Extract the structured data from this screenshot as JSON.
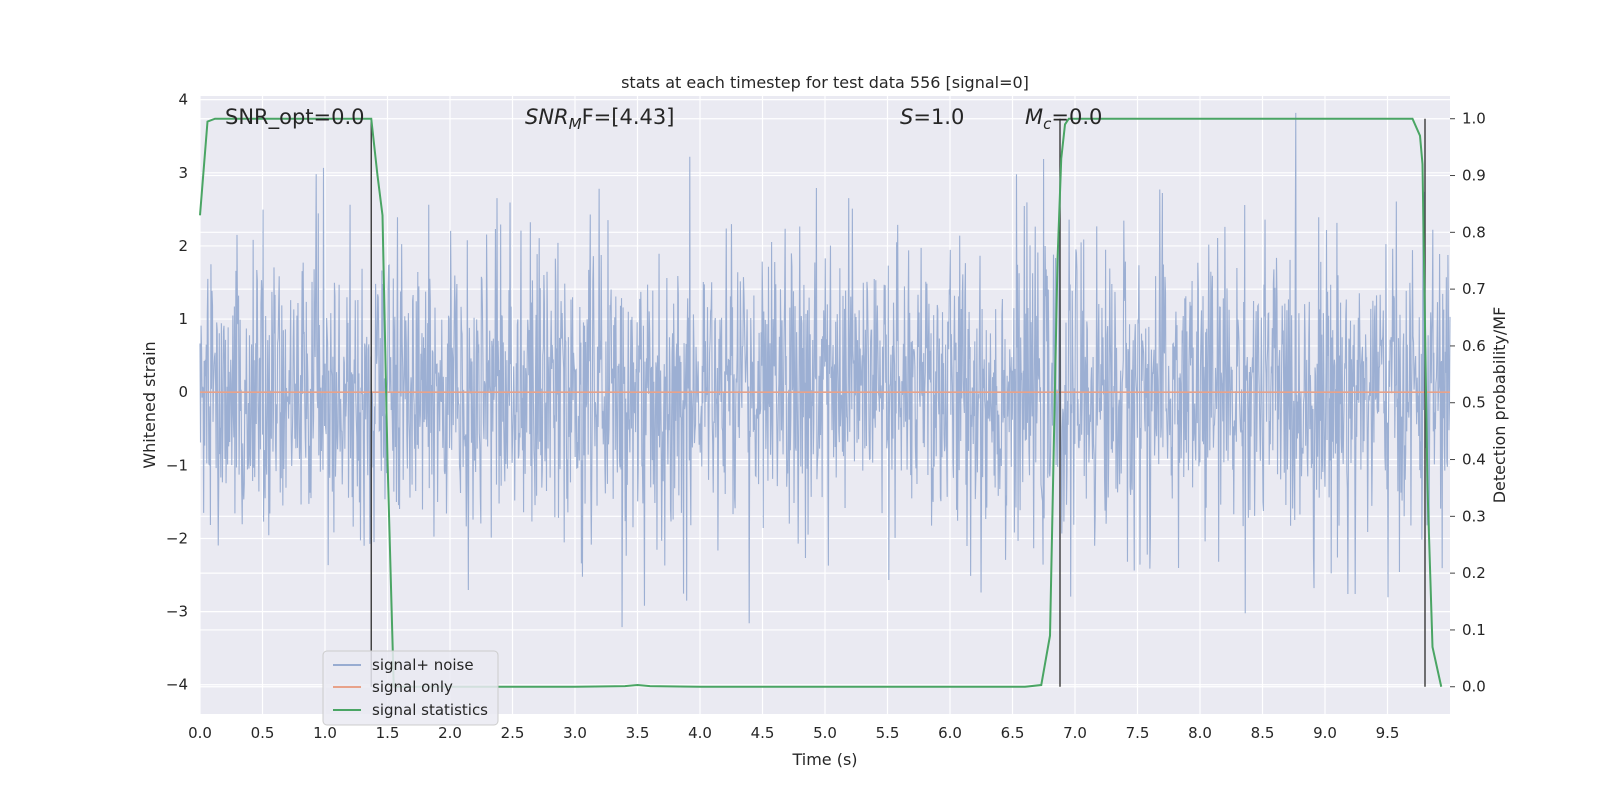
{
  "chart_data": {
    "type": "line",
    "title": "stats at each timestep for test data 556 [signal=0]",
    "xlabel": "Time (s)",
    "ylabel": "Whitened strain",
    "y2label": "Detection probability/MF",
    "xlim": [
      0.0,
      10.0
    ],
    "ylim": [
      -4.4,
      4.05
    ],
    "y2lim": [
      -0.048,
      1.04
    ],
    "xticks": [
      "0.0",
      "0.5",
      "1.0",
      "1.5",
      "2.0",
      "2.5",
      "3.0",
      "3.5",
      "4.0",
      "4.5",
      "5.0",
      "5.5",
      "6.0",
      "6.5",
      "7.0",
      "7.5",
      "8.0",
      "8.5",
      "9.0",
      "9.5"
    ],
    "yticks": [
      "−4",
      "−3",
      "−2",
      "−1",
      "0",
      "1",
      "2",
      "3",
      "4"
    ],
    "y2ticks": [
      "0.0",
      "0.1",
      "0.2",
      "0.3",
      "0.4",
      "0.5",
      "0.6",
      "0.7",
      "0.8",
      "0.9",
      "1.0"
    ],
    "grid": true,
    "legend_position": "lower-left",
    "annotations": [
      {
        "x": 0.2,
        "label_a": "SNR_opt=0.0",
        "label_b": ""
      },
      {
        "x": 2.6,
        "label_a": "SNR",
        "label_sub": "M",
        "label_b": "F=[4.43]"
      },
      {
        "x": 5.6,
        "label_a": "S",
        "label_sub": "",
        "label_b": "=1.0"
      },
      {
        "x": 6.6,
        "label_a": "M",
        "label_sub": "c",
        "label_b": "=0.0"
      }
    ],
    "series": [
      {
        "name": "signal+ noise",
        "color": "#98acd1",
        "kind": "noise",
        "amplitude_sigma": 1.0,
        "y_min": -4.0,
        "y_max": 3.82
      },
      {
        "name": "signal only",
        "color": "#e8a28a",
        "kind": "constant",
        "value": 0.0
      },
      {
        "name": "signal statistics",
        "color": "#4aa564",
        "kind": "right-axis",
        "x": [
          0.0,
          0.06,
          0.12,
          0.3,
          0.8,
          1.2,
          1.37,
          1.42,
          1.46,
          1.5,
          1.55,
          2.0,
          3.0,
          3.4,
          3.5,
          3.6,
          4.0,
          5.0,
          6.0,
          6.6,
          6.73,
          6.8,
          6.86,
          6.89,
          6.92,
          6.95,
          7.5,
          8.0,
          9.0,
          9.7,
          9.76,
          9.78,
          9.82,
          9.86,
          9.93
        ],
        "y": [
          0.83,
          0.995,
          1.0,
          1.0,
          1.0,
          1.0,
          1.0,
          0.9,
          0.83,
          0.4,
          0.0,
          0.0,
          0.0,
          0.001,
          0.003,
          0.001,
          0.0,
          0.0,
          0.0,
          0.0,
          0.003,
          0.09,
          0.75,
          0.93,
          0.99,
          1.0,
          1.0,
          1.0,
          1.0,
          1.0,
          0.97,
          0.92,
          0.35,
          0.07,
          0.0
        ]
      }
    ],
    "vlines": [
      1.37,
      6.88,
      9.8
    ]
  }
}
